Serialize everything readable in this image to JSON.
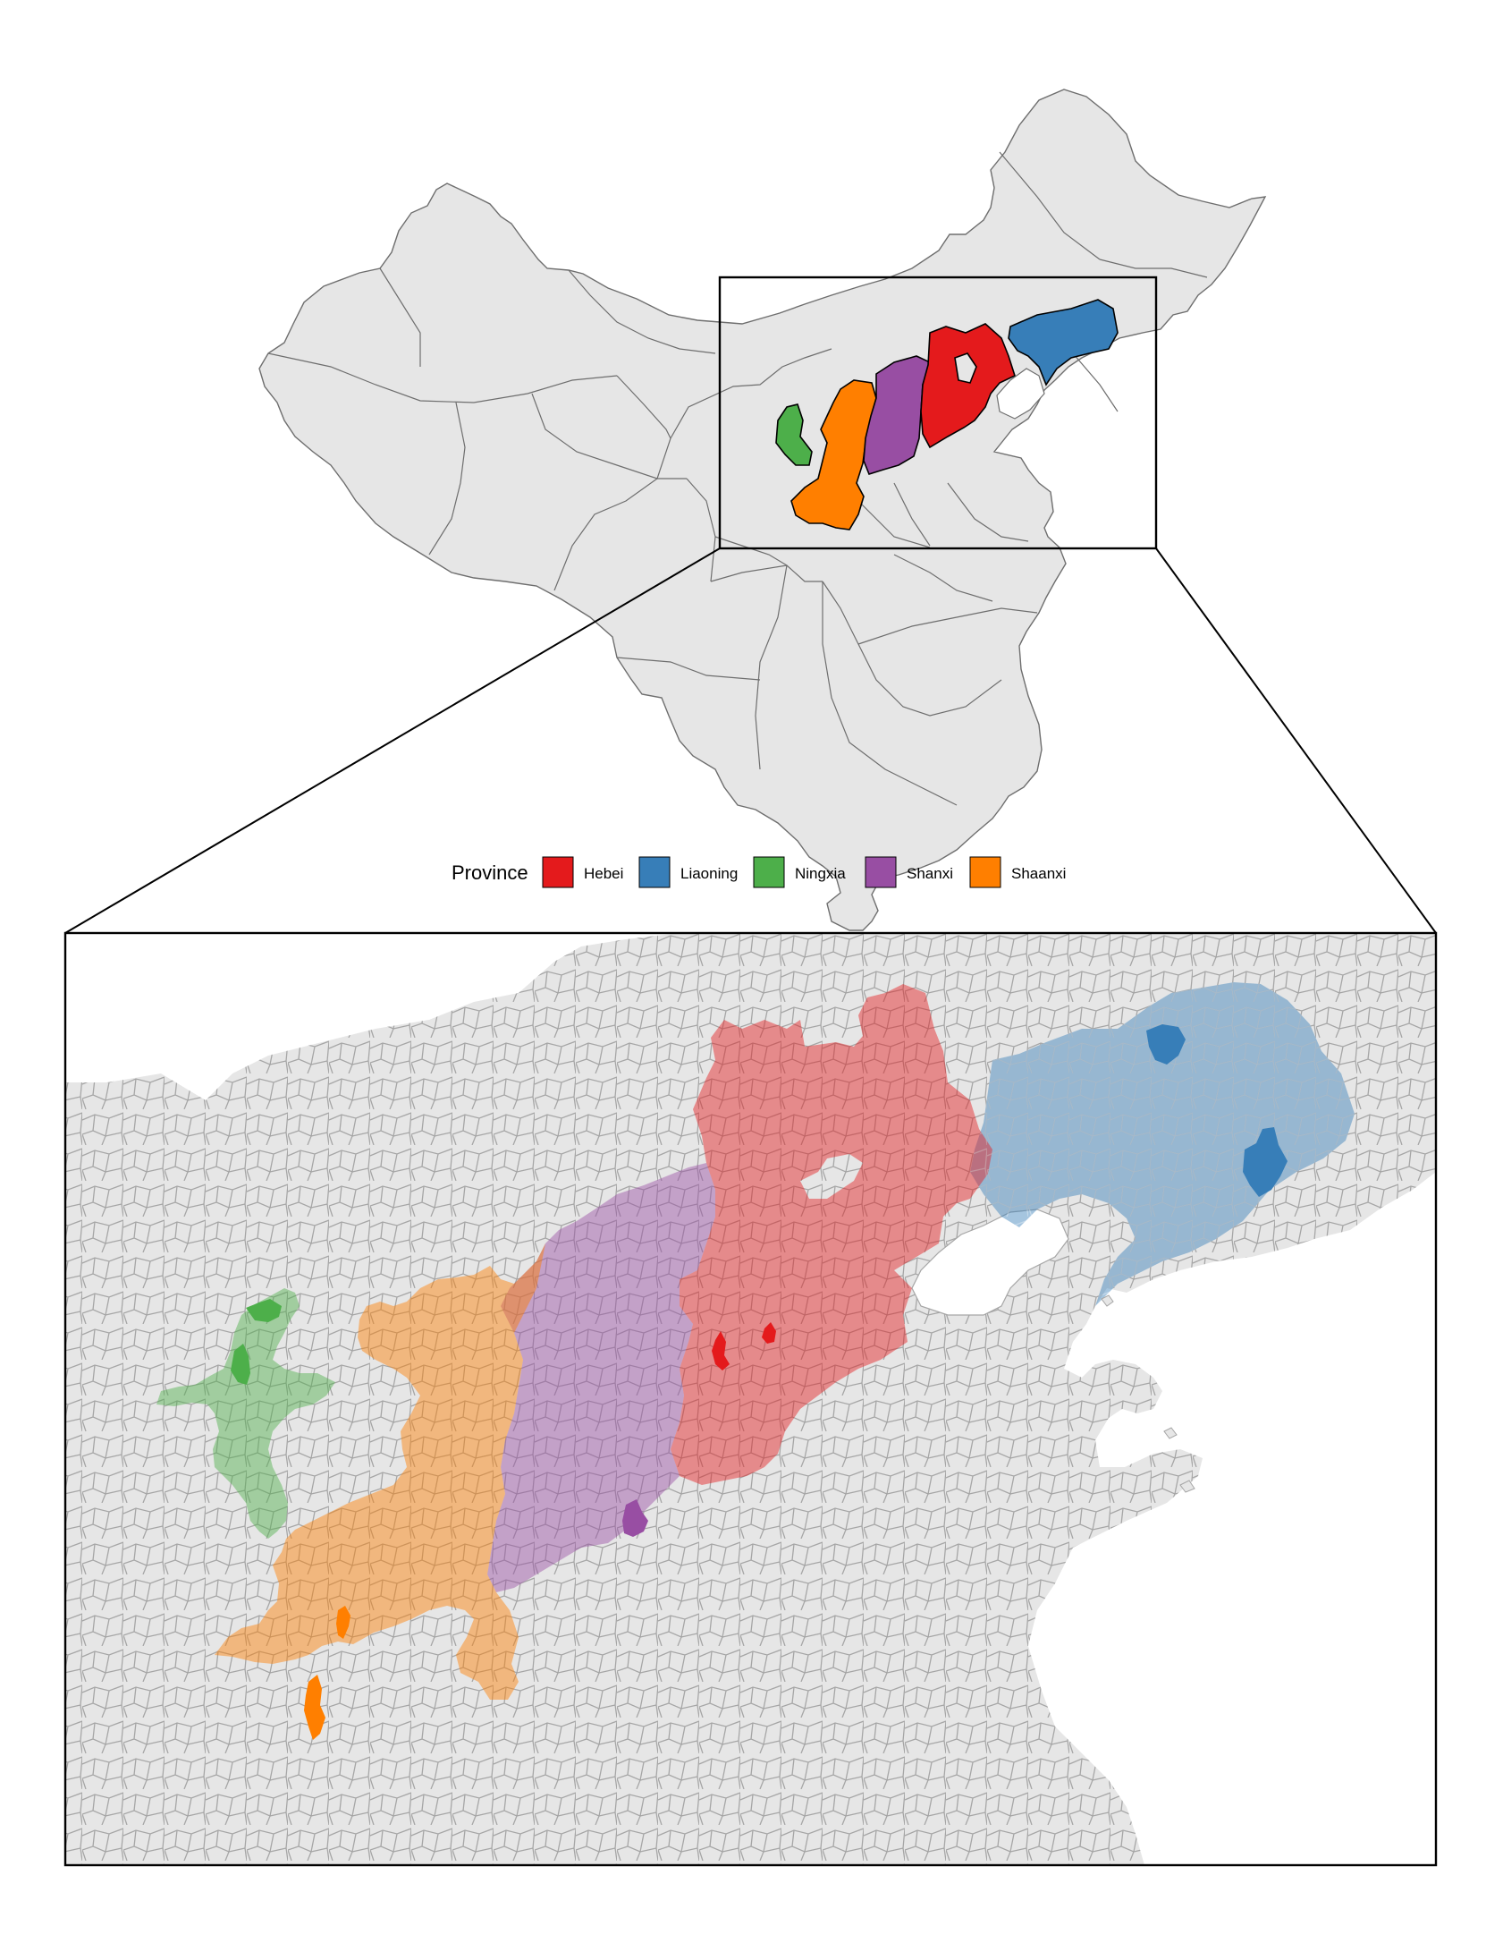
{
  "legend": {
    "title": "Province",
    "items": [
      {
        "label": "Hebei",
        "color": "#e41a1c"
      },
      {
        "label": "Liaoning",
        "color": "#377eb8"
      },
      {
        "label": "Ningxia",
        "color": "#4daf4a"
      },
      {
        "label": "Shanxi",
        "color": "#984ea3"
      },
      {
        "label": "Shaanxi",
        "color": "#ff7f00"
      }
    ]
  },
  "colors": {
    "land": "#e6e6e6",
    "border": "#8a8a8a",
    "county_border": "#a6a6a6",
    "frame": "#000000"
  },
  "highlight_opacity": 0.45
}
